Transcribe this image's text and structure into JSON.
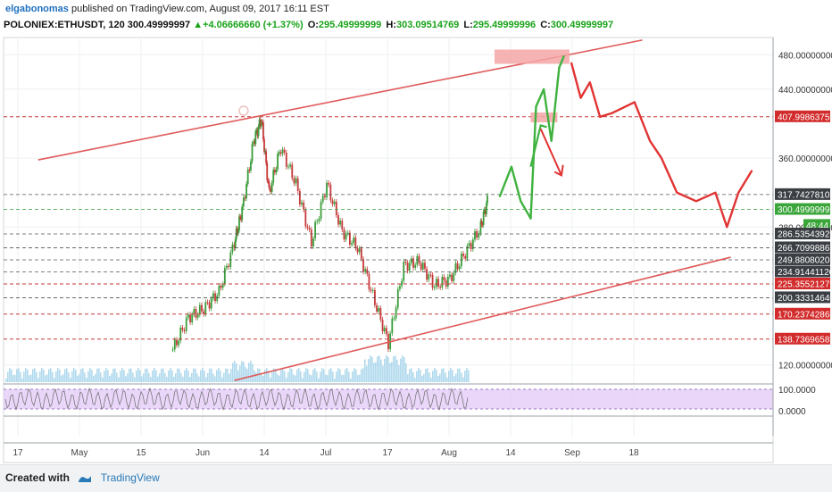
{
  "header": {
    "author": "elgabonomas",
    "published": "published on TradingView.com, August 09, 2017 16:11 EST",
    "symbol": "POLONIEX:ETHUSDT, 120",
    "last": "300.49999997",
    "change": "+4.06666660 (+1.37%)",
    "open_label": "O:",
    "open": "295.49999999",
    "high_label": "H:",
    "high": "303.09514769",
    "low_label": "L:",
    "low": "295.49999996",
    "close_label": "C:",
    "close": "300.49999997"
  },
  "footer": {
    "created_with": "Created with",
    "brand": "TradingView"
  },
  "colors": {
    "up": "#3a9d3a",
    "down": "#c73a3a",
    "trend": "#e05a5a",
    "oscillator_band": "#e2c8f5",
    "volume": "#8ecae6"
  },
  "chart_data": {
    "type": "line",
    "ylim": [
      100,
      500
    ],
    "x_ticks": [
      "17",
      "May",
      "15",
      "Jun",
      "14",
      "Jul",
      "17",
      "Aug",
      "14",
      "Sep",
      "18"
    ],
    "y_ticks": [
      120,
      280,
      360,
      440,
      480
    ],
    "price_levels": [
      {
        "label": "480.00000000",
        "value": 480,
        "style": "axis"
      },
      {
        "label": "440.00000000",
        "value": 440,
        "style": "axis"
      },
      {
        "label": "407.99863759",
        "value": 407.99863759,
        "style": "red"
      },
      {
        "label": "360.00000000",
        "value": 360,
        "style": "axis"
      },
      {
        "label": "317.74278107",
        "value": 317.74278107,
        "style": "dark"
      },
      {
        "label": "300.49999997",
        "value": 300.49999997,
        "style": "green"
      },
      {
        "label": "280.00000000",
        "value": 280,
        "style": "axis"
      },
      {
        "label": "48:44",
        "value": 282,
        "style": "timer"
      },
      {
        "label": "286.53543929",
        "value": 272,
        "style": "dark"
      },
      {
        "label": "266.70998867",
        "value": 256,
        "style": "dark"
      },
      {
        "label": "249.88080201",
        "value": 242,
        "style": "dark"
      },
      {
        "label": "234.91441126",
        "value": 228,
        "style": "dark"
      },
      {
        "label": "225.35521279",
        "value": 214,
        "style": "red"
      },
      {
        "label": "200.33314640",
        "value": 198,
        "style": "dark"
      },
      {
        "label": "170.23742863",
        "value": 179,
        "style": "red"
      },
      {
        "label": "138.73696589",
        "value": 150,
        "style": "red"
      },
      {
        "label": "120.00000000",
        "value": 120,
        "style": "axis"
      }
    ],
    "oscillator_ticks": [
      "100.0000",
      "0.0000"
    ],
    "price_series": [
      {
        "t": 0.22,
        "v": 138
      },
      {
        "t": 0.24,
        "v": 175
      },
      {
        "t": 0.26,
        "v": 185
      },
      {
        "t": 0.28,
        "v": 205
      },
      {
        "t": 0.3,
        "v": 262
      },
      {
        "t": 0.31,
        "v": 300
      },
      {
        "t": 0.325,
        "v": 380
      },
      {
        "t": 0.335,
        "v": 405
      },
      {
        "t": 0.345,
        "v": 320
      },
      {
        "t": 0.36,
        "v": 372
      },
      {
        "t": 0.38,
        "v": 330
      },
      {
        "t": 0.4,
        "v": 262
      },
      {
        "t": 0.42,
        "v": 330
      },
      {
        "t": 0.44,
        "v": 275
      },
      {
        "t": 0.46,
        "v": 256
      },
      {
        "t": 0.48,
        "v": 200
      },
      {
        "t": 0.5,
        "v": 145
      },
      {
        "t": 0.52,
        "v": 235
      },
      {
        "t": 0.54,
        "v": 240
      },
      {
        "t": 0.56,
        "v": 212
      },
      {
        "t": 0.58,
        "v": 220
      },
      {
        "t": 0.6,
        "v": 250
      },
      {
        "t": 0.62,
        "v": 280
      },
      {
        "t": 0.63,
        "v": 315
      }
    ],
    "projection_up": [
      {
        "t": 0.645,
        "v": 316
      },
      {
        "t": 0.66,
        "v": 350
      },
      {
        "t": 0.672,
        "v": 310
      },
      {
        "t": 0.685,
        "v": 290
      },
      {
        "t": 0.692,
        "v": 420
      },
      {
        "t": 0.702,
        "v": 440
      },
      {
        "t": 0.712,
        "v": 380
      },
      {
        "t": 0.722,
        "v": 465
      },
      {
        "t": 0.728,
        "v": 478
      }
    ],
    "projection_down": [
      {
        "t": 0.738,
        "v": 470
      },
      {
        "t": 0.75,
        "v": 430
      },
      {
        "t": 0.762,
        "v": 448
      },
      {
        "t": 0.775,
        "v": 408
      },
      {
        "t": 0.79,
        "v": 412
      },
      {
        "t": 0.82,
        "v": 425
      },
      {
        "t": 0.84,
        "v": 380
      },
      {
        "t": 0.855,
        "v": 360
      },
      {
        "t": 0.875,
        "v": 320
      },
      {
        "t": 0.9,
        "v": 310
      },
      {
        "t": 0.925,
        "v": 320
      },
      {
        "t": 0.94,
        "v": 280
      },
      {
        "t": 0.955,
        "v": 320
      },
      {
        "t": 0.972,
        "v": 345
      }
    ]
  }
}
